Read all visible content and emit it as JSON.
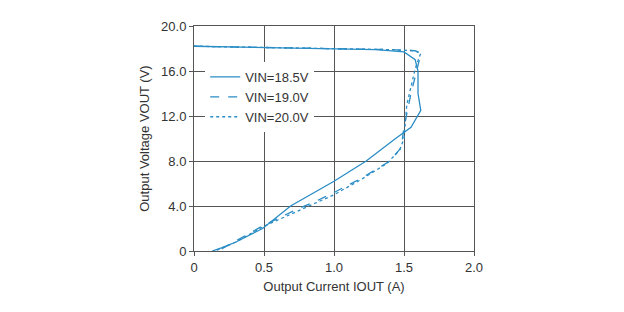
{
  "chart_data": {
    "type": "line",
    "x_label": "Output Current IOUT (A)",
    "y_label": "Output Voltage VOUT (V)",
    "xlim": [
      0,
      2.0
    ],
    "ylim": [
      0,
      20.0
    ],
    "xticks": [
      0,
      0.5,
      {
        "value": 1.0,
        "label": "1.0"
      },
      1.5,
      {
        "value": 2.0,
        "label": "2.0"
      }
    ],
    "yticks": [
      0,
      {
        "value": 4.0,
        "label": "4.0"
      },
      {
        "value": 8.0,
        "label": "8.0"
      },
      {
        "value": 12.0,
        "label": "12.0"
      },
      {
        "value": 16.0,
        "label": "16.0"
      },
      {
        "value": 20.0,
        "label": "20.0"
      }
    ],
    "grid": true,
    "legend": "upper left",
    "series": [
      {
        "name": "VIN=18.5V",
        "color": "#2a8dc5",
        "line_style": "solid",
        "x": [
          0,
          0.5,
          1.0,
          1.3,
          1.5,
          1.58,
          1.6,
          1.6,
          1.62,
          1.55,
          1.44,
          1.23,
          1.0,
          0.8,
          0.69,
          0.49,
          0.3,
          0.2,
          0.13
        ],
        "values": [
          18.2,
          18.1,
          18.0,
          17.9,
          17.7,
          17.0,
          16.0,
          14.0,
          12.5,
          11.0,
          10.0,
          8.0,
          6.2,
          4.8,
          4.0,
          2.0,
          0.8,
          0.3,
          0
        ]
      },
      {
        "name": "VIN=19.0V",
        "color": "#2a8dc5",
        "line_style": "dash",
        "x": [
          0,
          0.5,
          1.0,
          1.4,
          1.58,
          1.62,
          1.6,
          1.55,
          1.5,
          1.48,
          1.4,
          1.2,
          1.0,
          0.85,
          0.75,
          0.5,
          0.3,
          0.2,
          0.15
        ],
        "values": [
          18.2,
          18.1,
          18.0,
          17.9,
          17.8,
          17.5,
          16.5,
          14.0,
          11.0,
          9.2,
          8.0,
          6.5,
          5.2,
          4.3,
          3.8,
          2.3,
          0.9,
          0.2,
          0
        ]
      },
      {
        "name": "VIN=20.0V",
        "color": "#2a8dc5",
        "line_style": "dot",
        "x": [
          0,
          0.5,
          1.0,
          1.4,
          1.58,
          1.62,
          1.58,
          1.52,
          1.5,
          1.47,
          1.38,
          1.2,
          1.0,
          0.8,
          0.5,
          0.3,
          0.15
        ],
        "values": [
          18.2,
          18.1,
          18.0,
          17.9,
          17.8,
          17.6,
          16.2,
          13.0,
          10.0,
          9.0,
          7.8,
          6.4,
          5.0,
          3.9,
          2.2,
          0.8,
          0
        ]
      }
    ]
  }
}
